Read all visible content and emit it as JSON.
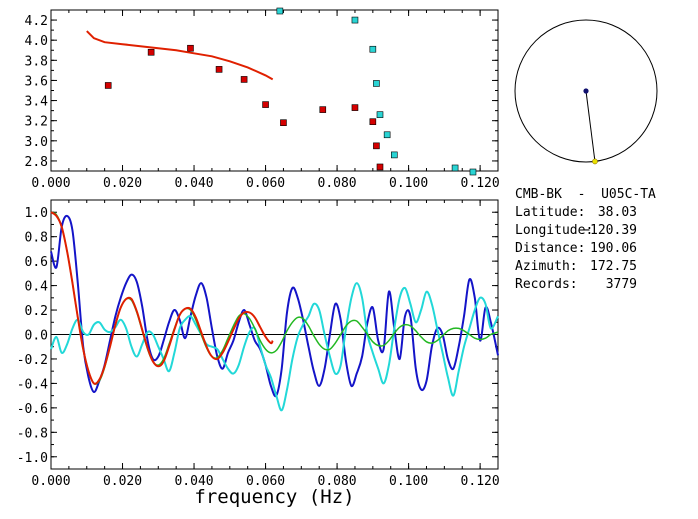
{
  "chart_data": [
    {
      "type": "scatter",
      "xlim": [
        0,
        0.125
      ],
      "ylim": [
        2.7,
        4.3
      ],
      "x_ticks": [
        "0.000",
        "0.020",
        "0.040",
        "0.060",
        "0.080",
        "0.100",
        "0.120"
      ],
      "y_ticks": [
        "2.8",
        "3.0",
        "3.2",
        "3.4",
        "3.6",
        "3.8",
        "4.0",
        "4.2"
      ],
      "grid": false,
      "series": [
        {
          "color": "#d40000",
          "marker": "square",
          "points": [
            [
              0.016,
              3.55
            ],
            [
              0.028,
              3.88
            ],
            [
              0.039,
              3.92
            ],
            [
              0.047,
              3.71
            ],
            [
              0.054,
              3.61
            ],
            [
              0.06,
              3.36
            ],
            [
              0.065,
              3.18
            ],
            [
              0.076,
              3.31
            ],
            [
              0.085,
              3.33
            ],
            [
              0.09,
              3.19
            ],
            [
              0.091,
              2.95
            ],
            [
              0.092,
              2.74
            ]
          ]
        },
        {
          "color": "#2ad4d4",
          "marker": "square",
          "points": [
            [
              0.064,
              4.29
            ],
            [
              0.085,
              4.2
            ],
            [
              0.09,
              3.91
            ],
            [
              0.091,
              3.57
            ],
            [
              0.092,
              3.26
            ],
            [
              0.094,
              3.06
            ],
            [
              0.096,
              2.86
            ],
            [
              0.113,
              2.73
            ],
            [
              0.118,
              2.69
            ]
          ]
        },
        {
          "color": "#e02000",
          "marker": "line",
          "points": [
            [
              0.01,
              4.09
            ],
            [
              0.012,
              4.02
            ],
            [
              0.015,
              3.98
            ],
            [
              0.02,
              3.96
            ],
            [
              0.025,
              3.94
            ],
            [
              0.03,
              3.92
            ],
            [
              0.035,
              3.9
            ],
            [
              0.04,
              3.87
            ],
            [
              0.045,
              3.84
            ],
            [
              0.05,
              3.79
            ],
            [
              0.055,
              3.73
            ],
            [
              0.06,
              3.65
            ],
            [
              0.062,
              3.61
            ]
          ]
        }
      ]
    },
    {
      "type": "line",
      "xlabel": "frequency (Hz)",
      "xlim": [
        0,
        0.125
      ],
      "ylim": [
        -1.1,
        1.1
      ],
      "x_ticks": [
        "0.000",
        "0.020",
        "0.040",
        "0.060",
        "0.080",
        "0.100",
        "0.120"
      ],
      "y_ticks": [
        "1.0",
        "0.8",
        "0.6",
        "0.4",
        "0.2",
        "0.0",
        "-0.2",
        "-0.4",
        "-0.6",
        "-0.8",
        "-1.0"
      ],
      "grid": false,
      "zero_line": true,
      "series": [
        {
          "color": "#1414c8",
          "x": [
            0,
            0.0015,
            0.003,
            0.0045,
            0.006,
            0.0075,
            0.009,
            0.0105,
            0.012,
            0.0135,
            0.015,
            0.0165,
            0.018,
            0.0195,
            0.021,
            0.0225,
            0.024,
            0.0255,
            0.027,
            0.0285,
            0.03,
            0.0315,
            0.033,
            0.0345,
            0.036,
            0.0375,
            0.039,
            0.0405,
            0.042,
            0.0435,
            0.045,
            0.0465,
            0.048,
            0.0495,
            0.051,
            0.0525,
            0.054,
            0.0555,
            0.057,
            0.0585,
            0.06,
            0.0615,
            0.063,
            0.0645,
            0.066,
            0.0675,
            0.069,
            0.0705,
            0.072,
            0.0735,
            0.075,
            0.0765,
            0.078,
            0.0795,
            0.081,
            0.0825,
            0.084,
            0.0855,
            0.087,
            0.0885,
            0.09,
            0.0915,
            0.093,
            0.0945,
            0.096,
            0.0975,
            0.099,
            0.1005,
            0.102,
            0.1035,
            0.105,
            0.1065,
            0.108,
            0.1095,
            0.111,
            0.1125,
            0.114,
            0.1155,
            0.117,
            0.1185,
            0.12,
            0.1215,
            0.123,
            0.125
          ],
          "values": [
            0.68,
            0.55,
            0.88,
            0.97,
            0.85,
            0.42,
            -0.1,
            -0.35,
            -0.47,
            -0.38,
            -0.25,
            -0.05,
            0.15,
            0.3,
            0.42,
            0.49,
            0.43,
            0.23,
            -0.05,
            -0.2,
            -0.18,
            -0.05,
            0.1,
            0.2,
            0.12,
            -0.03,
            0.15,
            0.32,
            0.42,
            0.3,
            0.05,
            -0.18,
            -0.28,
            -0.15,
            -0.05,
            0.1,
            0.2,
            0.08,
            -0.05,
            -0.12,
            -0.25,
            -0.42,
            -0.5,
            -0.28,
            0.18,
            0.38,
            0.3,
            0.12,
            -0.1,
            -0.3,
            -0.42,
            -0.28,
            0.0,
            0.25,
            0.12,
            -0.22,
            -0.42,
            -0.32,
            -0.18,
            0.1,
            0.22,
            -0.05,
            -0.12,
            0.35,
            0.05,
            -0.2,
            0.15,
            0.15,
            -0.28,
            -0.45,
            -0.38,
            -0.1,
            0.05,
            0.0,
            -0.2,
            -0.28,
            -0.1,
            0.15,
            0.45,
            0.3,
            -0.05,
            0.22,
            0.1,
            -0.17
          ]
        },
        {
          "color": "#22d8d8",
          "x": [
            0,
            0.0015,
            0.003,
            0.0045,
            0.006,
            0.0075,
            0.009,
            0.0105,
            0.012,
            0.0135,
            0.015,
            0.0165,
            0.018,
            0.0195,
            0.021,
            0.0225,
            0.024,
            0.0255,
            0.027,
            0.0285,
            0.03,
            0.0315,
            0.033,
            0.0345,
            0.036,
            0.0375,
            0.039,
            0.0405,
            0.042,
            0.0435,
            0.045,
            0.0465,
            0.048,
            0.0495,
            0.051,
            0.0525,
            0.054,
            0.0555,
            0.057,
            0.0585,
            0.06,
            0.0615,
            0.063,
            0.0645,
            0.066,
            0.0675,
            0.069,
            0.0705,
            0.072,
            0.0735,
            0.075,
            0.0765,
            0.078,
            0.0795,
            0.081,
            0.0825,
            0.084,
            0.0855,
            0.087,
            0.0885,
            0.09,
            0.0915,
            0.093,
            0.0945,
            0.096,
            0.0975,
            0.099,
            0.1005,
            0.102,
            0.1035,
            0.105,
            0.1065,
            0.108,
            0.1095,
            0.111,
            0.1125,
            0.114,
            0.1155,
            0.117,
            0.1185,
            0.12,
            0.1215,
            0.123,
            0.125
          ],
          "values": [
            -0.12,
            -0.02,
            -0.15,
            -0.08,
            0.05,
            0.12,
            0.02,
            0.0,
            0.08,
            0.1,
            0.04,
            0.02,
            0.06,
            0.12,
            0.05,
            -0.1,
            -0.18,
            -0.08,
            0.02,
            0.0,
            -0.1,
            -0.2,
            -0.3,
            -0.15,
            0.05,
            0.12,
            0.15,
            0.08,
            0.0,
            -0.08,
            -0.1,
            -0.12,
            -0.2,
            -0.28,
            -0.32,
            -0.25,
            -0.1,
            0.02,
            0.05,
            -0.1,
            -0.25,
            -0.35,
            -0.5,
            -0.62,
            -0.45,
            -0.2,
            -0.02,
            0.08,
            0.15,
            0.25,
            0.2,
            0.0,
            -0.18,
            -0.32,
            -0.25,
            0.05,
            0.3,
            0.42,
            0.3,
            0.0,
            -0.15,
            -0.28,
            -0.4,
            -0.25,
            0.05,
            0.3,
            0.38,
            0.25,
            0.1,
            0.2,
            0.35,
            0.25,
            0.05,
            -0.15,
            -0.35,
            -0.5,
            -0.3,
            -0.1,
            0.05,
            0.2,
            0.3,
            0.25,
            0.05,
            0.15
          ]
        },
        {
          "color": "#22b822",
          "x": [
            0,
            0.0015,
            0.003,
            0.0045,
            0.006,
            0.0075,
            0.009,
            0.0105,
            0.012,
            0.0135,
            0.015,
            0.0165,
            0.018,
            0.0195,
            0.021,
            0.0225,
            0.024,
            0.0255,
            0.027,
            0.0285,
            0.03,
            0.0315,
            0.033,
            0.0345,
            0.036,
            0.0375,
            0.039,
            0.0405,
            0.042,
            0.0435,
            0.045,
            0.0465,
            0.048,
            0.0495,
            0.051,
            0.0525,
            0.054,
            0.0555,
            0.057,
            0.0585,
            0.06,
            0.0615,
            0.063,
            0.0645,
            0.066,
            0.0675,
            0.069,
            0.0705,
            0.072,
            0.0735,
            0.075,
            0.0765,
            0.078,
            0.0795,
            0.081,
            0.0825,
            0.084,
            0.0855,
            0.087,
            0.0885,
            0.09,
            0.0915,
            0.093,
            0.0945,
            0.096,
            0.0975,
            0.099,
            0.1005,
            0.102,
            0.1035,
            0.105,
            0.1065,
            0.108,
            0.1095,
            0.111,
            0.1125,
            0.114,
            0.1155,
            0.117,
            0.1185,
            0.12,
            0.1215,
            0.123,
            0.125
          ],
          "values": [
            1.0,
            0.98,
            0.88,
            0.68,
            0.42,
            0.14,
            -0.12,
            -0.3,
            -0.4,
            -0.38,
            -0.27,
            -0.1,
            0.08,
            0.22,
            0.29,
            0.28,
            0.18,
            0.03,
            -0.12,
            -0.22,
            -0.25,
            -0.2,
            -0.08,
            0.05,
            0.16,
            0.21,
            0.2,
            0.12,
            0.0,
            -0.11,
            -0.18,
            -0.19,
            -0.13,
            -0.03,
            0.07,
            0.15,
            0.17,
            0.13,
            0.05,
            -0.05,
            -0.12,
            -0.15,
            -0.13,
            -0.06,
            0.03,
            0.1,
            0.14,
            0.13,
            0.07,
            -0.01,
            -0.08,
            -0.12,
            -0.12,
            -0.07,
            0.0,
            0.07,
            0.11,
            0.11,
            0.06,
            0.0,
            -0.06,
            -0.09,
            -0.09,
            -0.05,
            0.01,
            0.06,
            0.08,
            0.07,
            0.03,
            -0.02,
            -0.06,
            -0.07,
            -0.05,
            -0.01,
            0.03,
            0.05,
            0.05,
            0.03,
            0.0,
            -0.03,
            -0.04,
            -0.03,
            0.0,
            0.02
          ]
        },
        {
          "color": "#e02000",
          "x": [
            0,
            0.0015,
            0.003,
            0.0045,
            0.006,
            0.0075,
            0.009,
            0.0105,
            0.012,
            0.0135,
            0.015,
            0.0165,
            0.018,
            0.0195,
            0.021,
            0.0225,
            0.024,
            0.0255,
            0.027,
            0.0285,
            0.03,
            0.0315,
            0.033,
            0.0345,
            0.036,
            0.0375,
            0.039,
            0.0405,
            0.042,
            0.0435,
            0.045,
            0.0465,
            0.048,
            0.0495,
            0.051,
            0.0525,
            0.054,
            0.0555,
            0.057,
            0.0585,
            0.06,
            0.0615,
            0.062
          ],
          "values": [
            1.0,
            0.97,
            0.88,
            0.68,
            0.42,
            0.14,
            -0.12,
            -0.3,
            -0.4,
            -0.37,
            -0.26,
            -0.1,
            0.08,
            0.22,
            0.29,
            0.29,
            0.19,
            0.04,
            -0.11,
            -0.22,
            -0.26,
            -0.22,
            -0.1,
            0.04,
            0.16,
            0.21,
            0.21,
            0.14,
            0.02,
            -0.1,
            -0.18,
            -0.2,
            -0.15,
            -0.06,
            0.04,
            0.13,
            0.18,
            0.18,
            0.14,
            0.06,
            -0.02,
            -0.07,
            -0.05
          ]
        }
      ]
    }
  ],
  "circle_panel": {
    "needle_azimuth_deg": 172.75,
    "needle_length_fraction": 1.0,
    "center_dot_color": "#10106e",
    "end_dot_color": "#e8e000"
  },
  "station_info": {
    "title": "CMB-BK  -  U05C-TA",
    "rows": [
      {
        "label": "Latitude:",
        "value": "38.03"
      },
      {
        "label": "Longitude:",
        "value": "−120.39"
      },
      {
        "label": "Distance:",
        "value": "190.06"
      },
      {
        "label": "Azimuth:",
        "value": "172.75"
      },
      {
        "label": "Records:",
        "value": "3779"
      }
    ]
  }
}
